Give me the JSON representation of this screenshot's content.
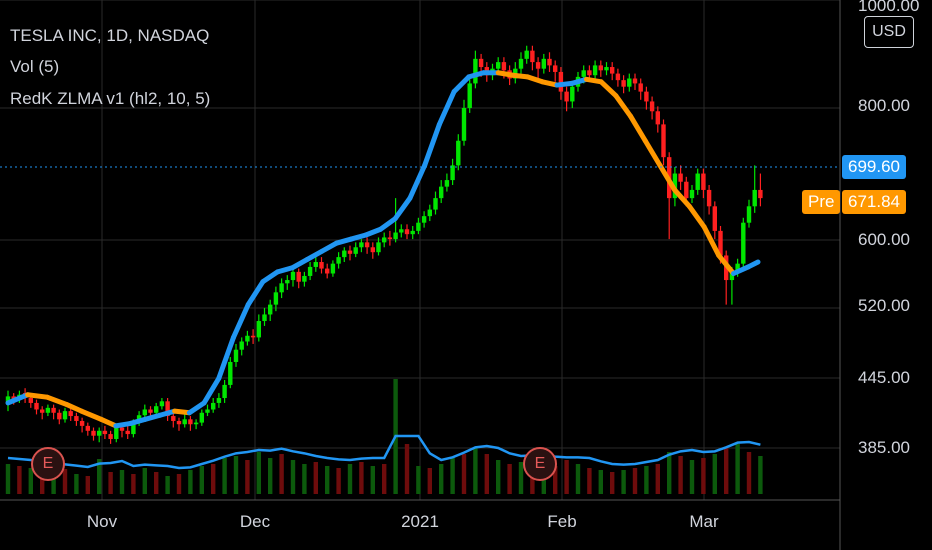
{
  "legend": {
    "symbol": "TESLA INC, 1D, NASDAQ",
    "volume": "Vol (5)",
    "indicator": "RedK ZLMA v1 (hl2, 10, 5)"
  },
  "currency": "USD",
  "last_price": {
    "value": "699.60",
    "color": "#2196f3"
  },
  "premarket": {
    "label": "Pre",
    "value": "671.84",
    "color": "#ff9800"
  },
  "earnings_marker": "E",
  "colors": {
    "up": "#00e600",
    "down": "#ff2020",
    "ma_up": "#2196f3",
    "ma_down": "#ff9800",
    "vol_line": "#2196f3"
  },
  "chart_data": {
    "type": "candlestick",
    "y_axis_ticks": [
      "1000.00",
      "800.00",
      "699.60",
      "600.00",
      "520.00",
      "445.00",
      "385.00"
    ],
    "x_axis_ticks": [
      "Nov",
      "Dec",
      "2021",
      "Feb",
      "Mar"
    ],
    "earnings_dates": [
      "2020-10-21",
      "2021-01-27"
    ],
    "ma_points": [
      [
        0,
        440
      ],
      [
        8,
        450
      ],
      [
        16,
        447
      ],
      [
        24,
        438
      ],
      [
        30,
        430
      ],
      [
        38,
        420
      ],
      [
        44,
        412
      ],
      [
        50,
        415
      ],
      [
        56,
        420
      ],
      [
        62,
        425
      ],
      [
        68,
        430
      ],
      [
        74,
        428
      ],
      [
        80,
        440
      ],
      [
        86,
        470
      ],
      [
        92,
        520
      ],
      [
        98,
        560
      ],
      [
        104,
        588
      ],
      [
        110,
        600
      ],
      [
        116,
        605
      ],
      [
        122,
        615
      ],
      [
        128,
        625
      ],
      [
        134,
        635
      ],
      [
        140,
        640
      ],
      [
        146,
        645
      ],
      [
        152,
        652
      ],
      [
        158,
        665
      ],
      [
        164,
        690
      ],
      [
        170,
        730
      ],
      [
        176,
        780
      ],
      [
        182,
        820
      ],
      [
        188,
        838
      ],
      [
        194,
        843
      ],
      [
        200,
        843
      ],
      [
        206,
        840
      ],
      [
        212,
        838
      ],
      [
        218,
        832
      ],
      [
        224,
        828
      ],
      [
        230,
        830
      ],
      [
        236,
        835
      ],
      [
        242,
        832
      ],
      [
        248,
        815
      ],
      [
        254,
        790
      ],
      [
        260,
        760
      ],
      [
        266,
        730
      ],
      [
        272,
        700
      ],
      [
        278,
        680
      ],
      [
        284,
        655
      ],
      [
        290,
        620
      ],
      [
        296,
        598
      ],
      [
        302,
        606
      ],
      [
        306,
        612
      ]
    ],
    "candles": [
      [
        0,
        440,
        448,
        430,
        455
      ],
      [
        2,
        448,
        442,
        438,
        452
      ],
      [
        4,
        445,
        450,
        440,
        455
      ],
      [
        6,
        452,
        446,
        440,
        458
      ],
      [
        8,
        446,
        440,
        434,
        450
      ],
      [
        10,
        440,
        432,
        426,
        444
      ],
      [
        12,
        432,
        428,
        420,
        436
      ],
      [
        14,
        428,
        434,
        424,
        438
      ],
      [
        16,
        434,
        428,
        420,
        438
      ],
      [
        18,
        428,
        420,
        414,
        432
      ],
      [
        20,
        420,
        430,
        416,
        434
      ],
      [
        22,
        430,
        424,
        418,
        434
      ],
      [
        24,
        424,
        418,
        412,
        428
      ],
      [
        26,
        418,
        412,
        404,
        422
      ],
      [
        28,
        412,
        406,
        400,
        416
      ],
      [
        30,
        406,
        400,
        394,
        410
      ],
      [
        32,
        400,
        406,
        392,
        410
      ],
      [
        34,
        406,
        402,
        396,
        412
      ],
      [
        36,
        402,
        396,
        390,
        406
      ],
      [
        38,
        396,
        410,
        392,
        414
      ],
      [
        40,
        410,
        406,
        398,
        416
      ],
      [
        42,
        406,
        402,
        396,
        412
      ],
      [
        44,
        402,
        416,
        398,
        420
      ],
      [
        46,
        416,
        425,
        412,
        430
      ],
      [
        48,
        425,
        432,
        420,
        438
      ],
      [
        50,
        432,
        428,
        422,
        436
      ],
      [
        52,
        428,
        436,
        424,
        440
      ],
      [
        54,
        436,
        442,
        432,
        446
      ],
      [
        56,
        442,
        424,
        418,
        446
      ],
      [
        58,
        424,
        418,
        410,
        428
      ],
      [
        60,
        418,
        414,
        406,
        422
      ],
      [
        62,
        414,
        420,
        410,
        426
      ],
      [
        64,
        420,
        414,
        406,
        424
      ],
      [
        66,
        414,
        416,
        408,
        420
      ],
      [
        68,
        416,
        428,
        412,
        432
      ],
      [
        70,
        428,
        432,
        424,
        438
      ],
      [
        72,
        432,
        440,
        428,
        446
      ],
      [
        74,
        440,
        446,
        434,
        452
      ],
      [
        76,
        446,
        462,
        440,
        468
      ],
      [
        78,
        462,
        490,
        458,
        496
      ],
      [
        80,
        490,
        505,
        484,
        512
      ],
      [
        82,
        505,
        515,
        498,
        520
      ],
      [
        84,
        515,
        522,
        510,
        528
      ],
      [
        86,
        522,
        520,
        512,
        530
      ],
      [
        88,
        520,
        540,
        515,
        548
      ],
      [
        90,
        540,
        548,
        534,
        556
      ],
      [
        92,
        548,
        560,
        540,
        566
      ],
      [
        94,
        560,
        575,
        552,
        582
      ],
      [
        96,
        575,
        586,
        568,
        592
      ],
      [
        98,
        586,
        590,
        578,
        596
      ],
      [
        100,
        590,
        600,
        582,
        606
      ],
      [
        102,
        600,
        588,
        580,
        604
      ],
      [
        104,
        588,
        595,
        582,
        600
      ],
      [
        106,
        595,
        606,
        590,
        612
      ],
      [
        108,
        606,
        612,
        600,
        618
      ],
      [
        110,
        612,
        604,
        598,
        618
      ],
      [
        112,
        604,
        598,
        592,
        610
      ],
      [
        114,
        598,
        610,
        594,
        614
      ],
      [
        116,
        610,
        618,
        604,
        624
      ],
      [
        118,
        618,
        626,
        612,
        630
      ],
      [
        120,
        626,
        622,
        614,
        632
      ],
      [
        122,
        622,
        630,
        618,
        636
      ],
      [
        124,
        630,
        636,
        624,
        640
      ],
      [
        126,
        636,
        630,
        622,
        642
      ],
      [
        128,
        630,
        624,
        616,
        636
      ],
      [
        130,
        624,
        636,
        620,
        642
      ],
      [
        132,
        636,
        642,
        630,
        648
      ],
      [
        134,
        642,
        640,
        632,
        650
      ],
      [
        136,
        640,
        648,
        636,
        690
      ],
      [
        138,
        648,
        652,
        642,
        658
      ],
      [
        140,
        652,
        646,
        640,
        658
      ],
      [
        142,
        646,
        650,
        640,
        656
      ],
      [
        144,
        650,
        660,
        646,
        666
      ],
      [
        146,
        660,
        668,
        654,
        674
      ],
      [
        148,
        668,
        676,
        662,
        682
      ],
      [
        150,
        676,
        690,
        670,
        698
      ],
      [
        152,
        690,
        704,
        684,
        712
      ],
      [
        154,
        704,
        712,
        698,
        720
      ],
      [
        156,
        712,
        730,
        706,
        738
      ],
      [
        158,
        730,
        760,
        724,
        768
      ],
      [
        160,
        760,
        800,
        754,
        810
      ],
      [
        162,
        800,
        830,
        794,
        840
      ],
      [
        164,
        830,
        860,
        824,
        870
      ],
      [
        166,
        860,
        850,
        838,
        866
      ],
      [
        168,
        850,
        840,
        832,
        856
      ],
      [
        170,
        840,
        848,
        834,
        854
      ],
      [
        172,
        848,
        856,
        842,
        862
      ],
      [
        174,
        856,
        846,
        836,
        862
      ],
      [
        176,
        846,
        836,
        828,
        852
      ],
      [
        178,
        836,
        848,
        830,
        856
      ],
      [
        180,
        848,
        860,
        842,
        868
      ],
      [
        182,
        860,
        870,
        854,
        876
      ],
      [
        184,
        870,
        856,
        846,
        876
      ],
      [
        186,
        856,
        848,
        836,
        862
      ],
      [
        188,
        848,
        860,
        842,
        866
      ],
      [
        190,
        860,
        852,
        844,
        868
      ],
      [
        192,
        852,
        844,
        832,
        858
      ],
      [
        194,
        844,
        820,
        810,
        850
      ],
      [
        196,
        820,
        808,
        796,
        826
      ],
      [
        198,
        808,
        826,
        800,
        832
      ],
      [
        200,
        826,
        838,
        820,
        844
      ],
      [
        202,
        838,
        846,
        830,
        852
      ],
      [
        204,
        846,
        840,
        832,
        852
      ],
      [
        206,
        840,
        852,
        834,
        858
      ],
      [
        208,
        852,
        846,
        838,
        858
      ],
      [
        210,
        846,
        850,
        840,
        856
      ],
      [
        212,
        850,
        842,
        834,
        856
      ],
      [
        214,
        842,
        834,
        826,
        848
      ],
      [
        216,
        834,
        826,
        818,
        840
      ],
      [
        218,
        826,
        836,
        820,
        842
      ],
      [
        220,
        836,
        830,
        822,
        842
      ],
      [
        222,
        830,
        820,
        810,
        836
      ],
      [
        224,
        820,
        808,
        798,
        826
      ],
      [
        226,
        808,
        796,
        786,
        814
      ],
      [
        228,
        796,
        780,
        770,
        802
      ],
      [
        230,
        780,
        740,
        730,
        786
      ],
      [
        232,
        740,
        690,
        640,
        746
      ],
      [
        234,
        690,
        720,
        680,
        728
      ],
      [
        236,
        720,
        710,
        700,
        730
      ],
      [
        238,
        710,
        690,
        680,
        716
      ],
      [
        240,
        690,
        700,
        684,
        706
      ],
      [
        242,
        700,
        720,
        694,
        726
      ],
      [
        244,
        720,
        700,
        690,
        726
      ],
      [
        246,
        700,
        680,
        670,
        706
      ],
      [
        248,
        680,
        650,
        640,
        686
      ],
      [
        250,
        650,
        620,
        610,
        656
      ],
      [
        252,
        620,
        590,
        560,
        626
      ],
      [
        254,
        590,
        600,
        560,
        606
      ],
      [
        256,
        600,
        610,
        594,
        616
      ],
      [
        258,
        610,
        660,
        604,
        666
      ],
      [
        260,
        660,
        680,
        654,
        688
      ],
      [
        262,
        680,
        700,
        672,
        730
      ],
      [
        264,
        700,
        690,
        680,
        720
      ]
    ],
    "volume_bars": [
      [
        0,
        30,
        1
      ],
      [
        4,
        28,
        0
      ],
      [
        8,
        26,
        1
      ],
      [
        12,
        24,
        0
      ],
      [
        16,
        22,
        1
      ],
      [
        20,
        25,
        0
      ],
      [
        24,
        20,
        1
      ],
      [
        28,
        18,
        0
      ],
      [
        32,
        35,
        1
      ],
      [
        36,
        22,
        0
      ],
      [
        40,
        24,
        1
      ],
      [
        44,
        20,
        0
      ],
      [
        48,
        26,
        1
      ],
      [
        52,
        22,
        0
      ],
      [
        56,
        18,
        1
      ],
      [
        60,
        20,
        0
      ],
      [
        64,
        24,
        1
      ],
      [
        68,
        28,
        1
      ],
      [
        72,
        30,
        0
      ],
      [
        76,
        36,
        1
      ],
      [
        80,
        38,
        1
      ],
      [
        84,
        34,
        0
      ],
      [
        88,
        42,
        1
      ],
      [
        92,
        36,
        1
      ],
      [
        96,
        40,
        0
      ],
      [
        100,
        34,
        1
      ],
      [
        104,
        30,
        1
      ],
      [
        108,
        32,
        0
      ],
      [
        112,
        28,
        1
      ],
      [
        116,
        26,
        0
      ],
      [
        120,
        30,
        1
      ],
      [
        124,
        32,
        0
      ],
      [
        128,
        28,
        1
      ],
      [
        132,
        30,
        0
      ],
      [
        136,
        115,
        1
      ],
      [
        140,
        50,
        0
      ],
      [
        144,
        28,
        1
      ],
      [
        148,
        26,
        0
      ],
      [
        152,
        30,
        1
      ],
      [
        156,
        36,
        1
      ],
      [
        160,
        40,
        0
      ],
      [
        164,
        46,
        1
      ],
      [
        168,
        40,
        0
      ],
      [
        172,
        34,
        1
      ],
      [
        176,
        30,
        0
      ],
      [
        180,
        32,
        1
      ],
      [
        184,
        36,
        0
      ],
      [
        188,
        30,
        1
      ],
      [
        192,
        28,
        0
      ],
      [
        196,
        34,
        0
      ],
      [
        200,
        30,
        1
      ],
      [
        204,
        26,
        0
      ],
      [
        208,
        24,
        1
      ],
      [
        212,
        22,
        0
      ],
      [
        216,
        24,
        1
      ],
      [
        220,
        26,
        0
      ],
      [
        224,
        28,
        1
      ],
      [
        228,
        30,
        0
      ],
      [
        232,
        42,
        1
      ],
      [
        236,
        38,
        0
      ],
      [
        240,
        34,
        1
      ],
      [
        244,
        36,
        0
      ],
      [
        248,
        40,
        1
      ],
      [
        252,
        46,
        0
      ],
      [
        256,
        50,
        1
      ],
      [
        260,
        42,
        0
      ],
      [
        264,
        38,
        1
      ]
    ]
  }
}
